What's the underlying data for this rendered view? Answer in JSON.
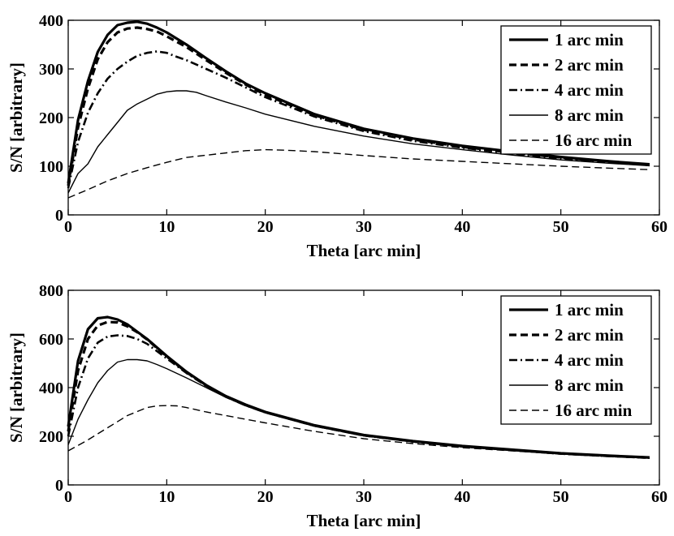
{
  "chart_data": [
    {
      "type": "line",
      "title": "",
      "xlabel": "Theta [arc min]",
      "ylabel": "S/N [arbitrary]",
      "xlim": [
        0,
        60
      ],
      "ylim": [
        0,
        400
      ],
      "xticks": [
        0,
        10,
        20,
        30,
        40,
        50,
        60
      ],
      "yticks": [
        0,
        100,
        200,
        300,
        400
      ],
      "grid": false,
      "legend_position": "top-right",
      "series": [
        {
          "name": "1 arc min",
          "style": "solid-thick",
          "x": [
            0,
            1,
            2,
            3,
            4,
            5,
            6,
            7,
            8,
            9,
            10,
            12,
            14,
            16,
            18,
            20,
            25,
            30,
            35,
            40,
            45,
            50,
            55,
            59
          ],
          "y": [
            65,
            195,
            275,
            335,
            370,
            390,
            395,
            397,
            393,
            385,
            375,
            350,
            322,
            295,
            270,
            250,
            207,
            177,
            157,
            142,
            130,
            119,
            110,
            104
          ]
        },
        {
          "name": "2 arc min",
          "style": "dashed-thick",
          "x": [
            0,
            1,
            2,
            3,
            4,
            5,
            6,
            7,
            8,
            9,
            10,
            12,
            14,
            16,
            18,
            20,
            25,
            30,
            35,
            40,
            45,
            50,
            55,
            59
          ],
          "y": [
            60,
            180,
            260,
            320,
            355,
            375,
            383,
            385,
            382,
            377,
            367,
            345,
            318,
            292,
            268,
            247,
            205,
            175,
            155,
            140,
            128,
            118,
            109,
            103
          ]
        },
        {
          "name": "4 arc min",
          "style": "dashdot-thick",
          "x": [
            0,
            1,
            2,
            3,
            4,
            5,
            6,
            7,
            8,
            9,
            10,
            11,
            12,
            14,
            16,
            18,
            20,
            25,
            30,
            35,
            40,
            45,
            50,
            55,
            59
          ],
          "y": [
            55,
            150,
            210,
            250,
            280,
            300,
            315,
            327,
            333,
            336,
            333,
            325,
            318,
            300,
            282,
            262,
            242,
            202,
            172,
            152,
            138,
            126,
            116,
            108,
            102
          ]
        },
        {
          "name": "8 arc min",
          "style": "solid-thin",
          "x": [
            0,
            1,
            2,
            3,
            4,
            5,
            6,
            7,
            8,
            9,
            10,
            11,
            12,
            13,
            14,
            16,
            18,
            20,
            25,
            30,
            35,
            40,
            45,
            50,
            55,
            59
          ],
          "y": [
            45,
            85,
            105,
            140,
            165,
            190,
            215,
            228,
            238,
            248,
            253,
            255,
            255,
            252,
            245,
            232,
            220,
            207,
            182,
            162,
            146,
            134,
            123,
            113,
            106,
            101
          ]
        },
        {
          "name": "16 arc min",
          "style": "dashed-thin",
          "x": [
            0,
            2,
            4,
            6,
            8,
            10,
            12,
            15,
            18,
            20,
            22,
            25,
            30,
            35,
            40,
            45,
            50,
            55,
            59
          ],
          "y": [
            35,
            52,
            70,
            85,
            97,
            108,
            118,
            125,
            132,
            134,
            133,
            130,
            122,
            115,
            110,
            105,
            100,
            96,
            93
          ]
        }
      ]
    },
    {
      "type": "line",
      "title": "",
      "xlabel": "Theta [arc min]",
      "ylabel": "S/N [arbitrary]",
      "xlim": [
        0,
        60
      ],
      "ylim": [
        0,
        800
      ],
      "xticks": [
        0,
        10,
        20,
        30,
        40,
        50,
        60
      ],
      "yticks": [
        0,
        200,
        400,
        600,
        800
      ],
      "grid": false,
      "legend_position": "top-right",
      "series": [
        {
          "name": "1 arc min",
          "style": "solid-thick",
          "x": [
            0,
            1,
            2,
            3,
            4,
            5,
            6,
            7,
            8,
            10,
            12,
            14,
            16,
            18,
            20,
            25,
            30,
            35,
            40,
            45,
            50,
            55,
            59
          ],
          "y": [
            240,
            510,
            640,
            685,
            690,
            680,
            660,
            630,
            600,
            530,
            465,
            410,
            365,
            330,
            300,
            245,
            205,
            180,
            160,
            145,
            130,
            120,
            113
          ]
        },
        {
          "name": "2 arc min",
          "style": "dashed-thick",
          "x": [
            0,
            1,
            2,
            3,
            4,
            5,
            6,
            7,
            8,
            10,
            12,
            14,
            16,
            18,
            20,
            25,
            30,
            35,
            40,
            45,
            50,
            55,
            59
          ],
          "y": [
            220,
            470,
            600,
            655,
            670,
            668,
            652,
            628,
            598,
            528,
            463,
            409,
            364,
            329,
            299,
            244,
            204,
            179,
            159,
            144,
            129,
            119,
            112
          ]
        },
        {
          "name": "4 arc min",
          "style": "dashdot-thick",
          "x": [
            0,
            1,
            2,
            3,
            4,
            5,
            6,
            7,
            8,
            10,
            12,
            14,
            16,
            18,
            20,
            25,
            30,
            35,
            40,
            45,
            50,
            55,
            59
          ],
          "y": [
            200,
            400,
            520,
            585,
            610,
            615,
            612,
            600,
            580,
            520,
            460,
            407,
            362,
            327,
            298,
            243,
            203,
            178,
            158,
            143,
            128,
            118,
            111
          ]
        },
        {
          "name": "8 arc min",
          "style": "solid-thin",
          "x": [
            0,
            1,
            2,
            3,
            4,
            5,
            6,
            7,
            8,
            9,
            10,
            12,
            14,
            16,
            18,
            20,
            25,
            30,
            35,
            40,
            45,
            50,
            55,
            59
          ],
          "y": [
            165,
            270,
            350,
            420,
            470,
            505,
            515,
            515,
            510,
            495,
            478,
            440,
            400,
            360,
            325,
            296,
            241,
            202,
            177,
            157,
            142,
            127,
            117,
            110
          ]
        },
        {
          "name": "16 arc min",
          "style": "dashed-thin",
          "x": [
            0,
            2,
            4,
            6,
            8,
            9,
            10,
            11,
            12,
            14,
            16,
            18,
            20,
            25,
            30,
            35,
            40,
            45,
            50,
            55,
            59
          ],
          "y": [
            140,
            185,
            235,
            285,
            318,
            325,
            326,
            325,
            318,
            300,
            285,
            270,
            255,
            220,
            190,
            170,
            153,
            140,
            127,
            117,
            110
          ]
        }
      ]
    }
  ]
}
